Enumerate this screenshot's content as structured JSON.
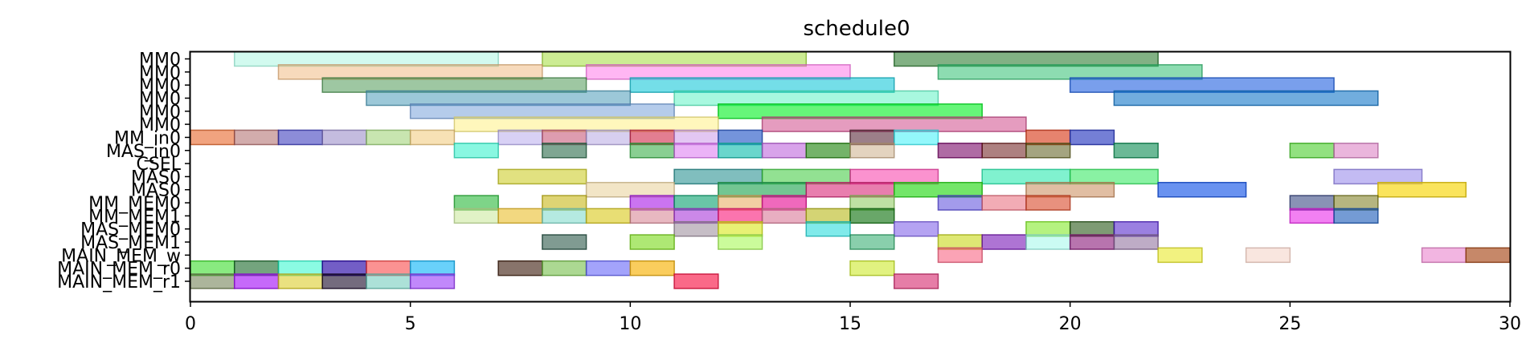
{
  "chart_data": {
    "type": "bar",
    "orientation": "horizontal-gantt",
    "title": "schedule0",
    "xlabel": "",
    "ylabel": "",
    "xlim": [
      0,
      30
    ],
    "xticks": [
      0,
      5,
      10,
      15,
      20,
      25,
      30
    ],
    "grid": false,
    "rows": [
      "MM0",
      "MM0",
      "MM0",
      "MM0",
      "MM0",
      "MM0",
      "MM_in0",
      "MAS_in0",
      "CSEL",
      "MAS0",
      "MAS0",
      "MM_MEM0",
      "MM_MEM1",
      "MAS_MEM0",
      "MAS_MEM1",
      "MAIN_MEM_w",
      "MAIN_MEM_r0",
      "MAIN_MEM_r1"
    ],
    "bars": [
      {
        "row": 0,
        "start": 1,
        "end": 7,
        "color": "#7ff2d2",
        "alpha": 0.35
      },
      {
        "row": 0,
        "start": 8,
        "end": 14,
        "color": "#a3dc3a",
        "alpha": 0.55
      },
      {
        "row": 0,
        "start": 16,
        "end": 22,
        "color": "#2e7d32",
        "alpha": 0.6
      },
      {
        "row": 1,
        "start": 2,
        "end": 8,
        "color": "#f0b57a",
        "alpha": 0.5
      },
      {
        "row": 1,
        "start": 9,
        "end": 15,
        "color": "#ff6de8",
        "alpha": 0.5
      },
      {
        "row": 1,
        "start": 17,
        "end": 23,
        "color": "#2fbf71",
        "alpha": 0.55
      },
      {
        "row": 2,
        "start": 3,
        "end": 9,
        "color": "#3d8f45",
        "alpha": 0.5
      },
      {
        "row": 2,
        "start": 10,
        "end": 16,
        "color": "#18c8d8",
        "alpha": 0.6
      },
      {
        "row": 2,
        "start": 20,
        "end": 26,
        "color": "#1f5fe0",
        "alpha": 0.6
      },
      {
        "row": 3,
        "start": 4,
        "end": 10,
        "color": "#4a9ab8",
        "alpha": 0.55
      },
      {
        "row": 3,
        "start": 11,
        "end": 17,
        "color": "#3ff0b8",
        "alpha": 0.45
      },
      {
        "row": 3,
        "start": 21,
        "end": 27,
        "color": "#1276c8",
        "alpha": 0.6
      },
      {
        "row": 4,
        "start": 5,
        "end": 11,
        "color": "#6b9ad8",
        "alpha": 0.5
      },
      {
        "row": 4,
        "start": 12,
        "end": 18,
        "color": "#00f020",
        "alpha": 0.6
      },
      {
        "row": 5,
        "start": 6,
        "end": 12,
        "color": "#fff07a",
        "alpha": 0.5
      },
      {
        "row": 5,
        "start": 13,
        "end": 19,
        "color": "#d04a8a",
        "alpha": 0.55
      },
      {
        "row": 6,
        "start": 0,
        "end": 1,
        "color": "#e8662a",
        "alpha": 0.6
      },
      {
        "row": 6,
        "start": 1,
        "end": 2,
        "color": "#a65a5a",
        "alpha": 0.5
      },
      {
        "row": 6,
        "start": 2,
        "end": 3,
        "color": "#2e2eb8",
        "alpha": 0.55
      },
      {
        "row": 6,
        "start": 3,
        "end": 4,
        "color": "#8a7ac0",
        "alpha": 0.5
      },
      {
        "row": 6,
        "start": 4,
        "end": 5,
        "color": "#9ad070",
        "alpha": 0.55
      },
      {
        "row": 6,
        "start": 5,
        "end": 6,
        "color": "#f0c878",
        "alpha": 0.55
      },
      {
        "row": 6,
        "start": 7,
        "end": 8,
        "color": "#a898e8",
        "alpha": 0.45
      },
      {
        "row": 6,
        "start": 8,
        "end": 9,
        "color": "#c85a7a",
        "alpha": 0.6
      },
      {
        "row": 6,
        "start": 9,
        "end": 10,
        "color": "#b0a0e0",
        "alpha": 0.5
      },
      {
        "row": 6,
        "start": 10,
        "end": 11,
        "color": "#d02848",
        "alpha": 0.6
      },
      {
        "row": 6,
        "start": 11,
        "end": 12,
        "color": "#c890e8",
        "alpha": 0.5
      },
      {
        "row": 6,
        "start": 12,
        "end": 13,
        "color": "#2a5ac8",
        "alpha": 0.65
      },
      {
        "row": 6,
        "start": 15,
        "end": 16,
        "color": "#5a2a3a",
        "alpha": 0.6
      },
      {
        "row": 6,
        "start": 16,
        "end": 17,
        "color": "#28f0f8",
        "alpha": 0.5
      },
      {
        "row": 6,
        "start": 19,
        "end": 20,
        "color": "#d84020",
        "alpha": 0.65
      },
      {
        "row": 6,
        "start": 20,
        "end": 21,
        "color": "#2a3ac0",
        "alpha": 0.65
      },
      {
        "row": 7,
        "start": 6,
        "end": 7,
        "color": "#28f0c8",
        "alpha": 0.55
      },
      {
        "row": 7,
        "start": 8,
        "end": 9,
        "color": "#2a6a4a",
        "alpha": 0.6
      },
      {
        "row": 7,
        "start": 10,
        "end": 11,
        "color": "#28a838",
        "alpha": 0.55
      },
      {
        "row": 7,
        "start": 11,
        "end": 12,
        "color": "#d868f0",
        "alpha": 0.5
      },
      {
        "row": 7,
        "start": 12,
        "end": 13,
        "color": "#18c0b0",
        "alpha": 0.65
      },
      {
        "row": 7,
        "start": 13,
        "end": 14,
        "color": "#b858d8",
        "alpha": 0.55
      },
      {
        "row": 7,
        "start": 14,
        "end": 15,
        "color": "#2a8a18",
        "alpha": 0.65
      },
      {
        "row": 7,
        "start": 15,
        "end": 16,
        "color": "#c8a880",
        "alpha": 0.5
      },
      {
        "row": 7,
        "start": 17,
        "end": 18,
        "color": "#7a0868",
        "alpha": 0.6
      },
      {
        "row": 7,
        "start": 18,
        "end": 19,
        "color": "#6a1818",
        "alpha": 0.55
      },
      {
        "row": 7,
        "start": 19,
        "end": 20,
        "color": "#5a5a18",
        "alpha": 0.55
      },
      {
        "row": 7,
        "start": 21,
        "end": 22,
        "color": "#088a50",
        "alpha": 0.6
      },
      {
        "row": 7,
        "start": 25,
        "end": 26,
        "color": "#38c818",
        "alpha": 0.55
      },
      {
        "row": 7,
        "start": 26,
        "end": 27,
        "color": "#d878c0",
        "alpha": 0.55
      },
      {
        "row": 9,
        "start": 7,
        "end": 9,
        "color": "#c8c818",
        "alpha": 0.55
      },
      {
        "row": 9,
        "start": 11,
        "end": 13,
        "color": "#188888",
        "alpha": 0.55
      },
      {
        "row": 9,
        "start": 13,
        "end": 15,
        "color": "#38c838",
        "alpha": 0.55
      },
      {
        "row": 9,
        "start": 15,
        "end": 17,
        "color": "#f838a8",
        "alpha": 0.55
      },
      {
        "row": 9,
        "start": 18,
        "end": 20,
        "color": "#18e8a8",
        "alpha": 0.55
      },
      {
        "row": 9,
        "start": 20,
        "end": 22,
        "color": "#28e858",
        "alpha": 0.55
      },
      {
        "row": 9,
        "start": 26,
        "end": 28,
        "color": "#8878e8",
        "alpha": 0.5
      },
      {
        "row": 10,
        "start": 9,
        "end": 11,
        "color": "#e8d098",
        "alpha": 0.55
      },
      {
        "row": 10,
        "start": 12,
        "end": 14,
        "color": "#28a858",
        "alpha": 0.65
      },
      {
        "row": 10,
        "start": 14,
        "end": 16,
        "color": "#d82878",
        "alpha": 0.6
      },
      {
        "row": 10,
        "start": 16,
        "end": 18,
        "color": "#28d818",
        "alpha": 0.65
      },
      {
        "row": 10,
        "start": 19,
        "end": 21,
        "color": "#c88858",
        "alpha": 0.55
      },
      {
        "row": 10,
        "start": 22,
        "end": 24,
        "color": "#1858e8",
        "alpha": 0.65
      },
      {
        "row": 10,
        "start": 27,
        "end": 29,
        "color": "#f8d818",
        "alpha": 0.7
      },
      {
        "row": 11,
        "start": 6,
        "end": 7,
        "color": "#28b838",
        "alpha": 0.6
      },
      {
        "row": 11,
        "start": 8,
        "end": 9,
        "color": "#c8b818",
        "alpha": 0.6
      },
      {
        "row": 11,
        "start": 10,
        "end": 11,
        "color": "#a818e8",
        "alpha": 0.6
      },
      {
        "row": 11,
        "start": 11,
        "end": 12,
        "color": "#18a878",
        "alpha": 0.65
      },
      {
        "row": 11,
        "start": 12,
        "end": 13,
        "color": "#e8a858",
        "alpha": 0.55
      },
      {
        "row": 11,
        "start": 13,
        "end": 14,
        "color": "#e81898",
        "alpha": 0.65
      },
      {
        "row": 11,
        "start": 15,
        "end": 16,
        "color": "#88c858",
        "alpha": 0.55
      },
      {
        "row": 11,
        "start": 17,
        "end": 18,
        "color": "#4838d8",
        "alpha": 0.5
      },
      {
        "row": 11,
        "start": 18,
        "end": 19,
        "color": "#e86878",
        "alpha": 0.55
      },
      {
        "row": 11,
        "start": 19,
        "end": 20,
        "color": "#d84828",
        "alpha": 0.6
      },
      {
        "row": 11,
        "start": 25,
        "end": 26,
        "color": "#283878",
        "alpha": 0.55
      },
      {
        "row": 11,
        "start": 26,
        "end": 27,
        "color": "#787818",
        "alpha": 0.55
      },
      {
        "row": 12,
        "start": 6,
        "end": 7,
        "color": "#c8e898",
        "alpha": 0.55
      },
      {
        "row": 12,
        "start": 7,
        "end": 8,
        "color": "#e8b818",
        "alpha": 0.55
      },
      {
        "row": 12,
        "start": 8,
        "end": 9,
        "color": "#78d8c8",
        "alpha": 0.55
      },
      {
        "row": 12,
        "start": 9,
        "end": 10,
        "color": "#d8c818",
        "alpha": 0.6
      },
      {
        "row": 12,
        "start": 10,
        "end": 11,
        "color": "#d88898",
        "alpha": 0.6
      },
      {
        "row": 12,
        "start": 11,
        "end": 12,
        "color": "#a838d8",
        "alpha": 0.6
      },
      {
        "row": 12,
        "start": 12,
        "end": 13,
        "color": "#f81878",
        "alpha": 0.6
      },
      {
        "row": 12,
        "start": 13,
        "end": 14,
        "color": "#d87898",
        "alpha": 0.6
      },
      {
        "row": 12,
        "start": 14,
        "end": 15,
        "color": "#b8b818",
        "alpha": 0.6
      },
      {
        "row": 12,
        "start": 15,
        "end": 16,
        "color": "#187818",
        "alpha": 0.65
      },
      {
        "row": 12,
        "start": 25,
        "end": 26,
        "color": "#e818e8",
        "alpha": 0.55
      },
      {
        "row": 12,
        "start": 26,
        "end": 27,
        "color": "#1858b8",
        "alpha": 0.6
      },
      {
        "row": 13,
        "start": 11,
        "end": 12,
        "color": "#988898",
        "alpha": 0.55
      },
      {
        "row": 13,
        "start": 12,
        "end": 13,
        "color": "#d8e818",
        "alpha": 0.6
      },
      {
        "row": 13,
        "start": 14,
        "end": 15,
        "color": "#18d8d8",
        "alpha": 0.55
      },
      {
        "row": 13,
        "start": 16,
        "end": 17,
        "color": "#7858e8",
        "alpha": 0.55
      },
      {
        "row": 13,
        "start": 19,
        "end": 20,
        "color": "#78e818",
        "alpha": 0.55
      },
      {
        "row": 13,
        "start": 20,
        "end": 21,
        "color": "#285818",
        "alpha": 0.6
      },
      {
        "row": 13,
        "start": 21,
        "end": 22,
        "color": "#4818c8",
        "alpha": 0.55
      },
      {
        "row": 14,
        "start": 8,
        "end": 9,
        "color": "#184838",
        "alpha": 0.55
      },
      {
        "row": 14,
        "start": 10,
        "end": 11,
        "color": "#78d818",
        "alpha": 0.6
      },
      {
        "row": 14,
        "start": 12,
        "end": 13,
        "color": "#a8f858",
        "alpha": 0.6
      },
      {
        "row": 14,
        "start": 15,
        "end": 16,
        "color": "#28a868",
        "alpha": 0.55
      },
      {
        "row": 14,
        "start": 17,
        "end": 18,
        "color": "#c8d818",
        "alpha": 0.6
      },
      {
        "row": 14,
        "start": 18,
        "end": 19,
        "color": "#7818b8",
        "alpha": 0.6
      },
      {
        "row": 14,
        "start": 19,
        "end": 20,
        "color": "#98f8e8",
        "alpha": 0.5
      },
      {
        "row": 14,
        "start": 20,
        "end": 21,
        "color": "#881878",
        "alpha": 0.6
      },
      {
        "row": 14,
        "start": 21,
        "end": 22,
        "color": "#886898",
        "alpha": 0.55
      },
      {
        "row": 15,
        "start": 17,
        "end": 18,
        "color": "#f85878",
        "alpha": 0.55
      },
      {
        "row": 15,
        "start": 22,
        "end": 23,
        "color": "#e8e818",
        "alpha": 0.55
      },
      {
        "row": 15,
        "start": 24,
        "end": 25,
        "color": "#f0c0b0",
        "alpha": 0.4
      },
      {
        "row": 15,
        "start": 28,
        "end": 29,
        "color": "#e878c8",
        "alpha": 0.55
      },
      {
        "row": 15,
        "start": 29,
        "end": 30,
        "color": "#a84818",
        "alpha": 0.65
      },
      {
        "row": 16,
        "start": 0,
        "end": 1,
        "color": "#28d818",
        "alpha": 0.55
      },
      {
        "row": 16,
        "start": 1,
        "end": 2,
        "color": "#186828",
        "alpha": 0.6
      },
      {
        "row": 16,
        "start": 2,
        "end": 3,
        "color": "#18f8c8",
        "alpha": 0.5
      },
      {
        "row": 16,
        "start": 3,
        "end": 4,
        "color": "#2808a8",
        "alpha": 0.65
      },
      {
        "row": 16,
        "start": 4,
        "end": 5,
        "color": "#f83838",
        "alpha": 0.55
      },
      {
        "row": 16,
        "start": 5,
        "end": 6,
        "color": "#18b8f8",
        "alpha": 0.65
      },
      {
        "row": 16,
        "start": 7,
        "end": 8,
        "color": "#381808",
        "alpha": 0.6
      },
      {
        "row": 16,
        "start": 8,
        "end": 9,
        "color": "#68b838",
        "alpha": 0.55
      },
      {
        "row": 16,
        "start": 9,
        "end": 10,
        "color": "#5858f8",
        "alpha": 0.55
      },
      {
        "row": 16,
        "start": 10,
        "end": 11,
        "color": "#f8b818",
        "alpha": 0.7
      },
      {
        "row": 16,
        "start": 15,
        "end": 16,
        "color": "#c8e818",
        "alpha": 0.55
      },
      {
        "row": 17,
        "start": 0,
        "end": 1,
        "color": "#687848",
        "alpha": 0.55
      },
      {
        "row": 17,
        "start": 1,
        "end": 2,
        "color": "#a818f8",
        "alpha": 0.65
      },
      {
        "row": 17,
        "start": 2,
        "end": 3,
        "color": "#d8c818",
        "alpha": 0.55
      },
      {
        "row": 17,
        "start": 3,
        "end": 4,
        "color": "#180828",
        "alpha": 0.6
      },
      {
        "row": 17,
        "start": 4,
        "end": 5,
        "color": "#68c8b8",
        "alpha": 0.55
      },
      {
        "row": 17,
        "start": 5,
        "end": 6,
        "color": "#9838f8",
        "alpha": 0.6
      },
      {
        "row": 17,
        "start": 11,
        "end": 12,
        "color": "#f81848",
        "alpha": 0.65
      },
      {
        "row": 17,
        "start": 16,
        "end": 17,
        "color": "#d83878",
        "alpha": 0.65
      }
    ]
  }
}
